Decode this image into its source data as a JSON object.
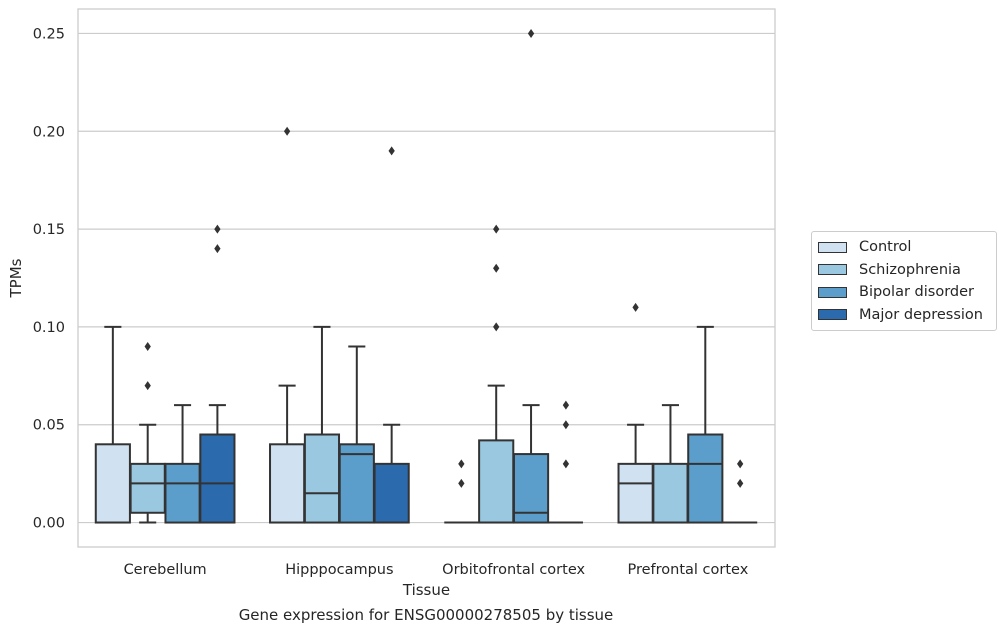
{
  "caption": "Gene expression for ENSG00000278505 by tissue",
  "chart_data": {
    "type": "boxplot",
    "xlabel": "Tissue",
    "ylabel": "TPMs",
    "ylim": [
      -0.0125,
      0.2625
    ],
    "yticks": [
      0.0,
      0.05,
      0.1,
      0.15,
      0.2,
      0.25
    ],
    "ytick_labels": [
      "0.00",
      "0.05",
      "0.10",
      "0.15",
      "0.20",
      "0.25"
    ],
    "grid": "horizontal",
    "legend_position": "right",
    "categories": [
      "Cerebellum",
      "Hipppocampus",
      "Orbitofrontal cortex",
      "Prefrontal cortex"
    ],
    "series": [
      {
        "name": "Control",
        "color": "#d0e1f2",
        "boxes": [
          {
            "low": 0.0,
            "q1": 0.0,
            "median": 0.0,
            "q3": 0.04,
            "high": 0.1,
            "outliers": []
          },
          {
            "low": 0.0,
            "q1": 0.0,
            "median": 0.0,
            "q3": 0.04,
            "high": 0.07,
            "outliers": [
              0.2
            ]
          },
          {
            "low": 0.0,
            "q1": 0.0,
            "median": 0.0,
            "q3": 0.0,
            "high": 0.0,
            "outliers": [
              0.02,
              0.03
            ]
          },
          {
            "low": 0.0,
            "q1": 0.0,
            "median": 0.02,
            "q3": 0.03,
            "high": 0.05,
            "outliers": [
              0.11
            ]
          }
        ]
      },
      {
        "name": "Schizophrenia",
        "color": "#9ac8e0",
        "boxes": [
          {
            "low": 0.0,
            "q1": 0.005,
            "median": 0.02,
            "q3": 0.03,
            "high": 0.05,
            "outliers": [
              0.07,
              0.09
            ]
          },
          {
            "low": 0.0,
            "q1": 0.0,
            "median": 0.015,
            "q3": 0.045,
            "high": 0.1,
            "outliers": []
          },
          {
            "low": 0.0,
            "q1": 0.0,
            "median": 0.0,
            "q3": 0.042,
            "high": 0.07,
            "outliers": [
              0.1,
              0.13,
              0.15
            ]
          },
          {
            "low": 0.0,
            "q1": 0.0,
            "median": 0.0,
            "q3": 0.03,
            "high": 0.06,
            "outliers": []
          }
        ]
      },
      {
        "name": "Bipolar disorder",
        "color": "#5b9ecb",
        "boxes": [
          {
            "low": 0.0,
            "q1": 0.0,
            "median": 0.02,
            "q3": 0.03,
            "high": 0.06,
            "outliers": []
          },
          {
            "low": 0.0,
            "q1": 0.0,
            "median": 0.035,
            "q3": 0.04,
            "high": 0.09,
            "outliers": []
          },
          {
            "low": 0.0,
            "q1": 0.0,
            "median": 0.005,
            "q3": 0.035,
            "high": 0.06,
            "outliers": [
              0.25
            ]
          },
          {
            "low": 0.0,
            "q1": 0.0,
            "median": 0.03,
            "q3": 0.045,
            "high": 0.1,
            "outliers": []
          }
        ]
      },
      {
        "name": "Major depression",
        "color": "#2a6aad",
        "boxes": [
          {
            "low": 0.0,
            "q1": 0.0,
            "median": 0.02,
            "q3": 0.045,
            "high": 0.06,
            "outliers": [
              0.14,
              0.15
            ]
          },
          {
            "low": 0.0,
            "q1": 0.0,
            "median": 0.0,
            "q3": 0.03,
            "high": 0.05,
            "outliers": [
              0.19
            ]
          },
          {
            "low": 0.0,
            "q1": 0.0,
            "median": 0.0,
            "q3": 0.0,
            "high": 0.0,
            "outliers": [
              0.03,
              0.05,
              0.06
            ]
          },
          {
            "low": 0.0,
            "q1": 0.0,
            "median": 0.0,
            "q3": 0.0,
            "high": 0.0,
            "outliers": [
              0.02,
              0.03
            ]
          }
        ]
      }
    ]
  }
}
